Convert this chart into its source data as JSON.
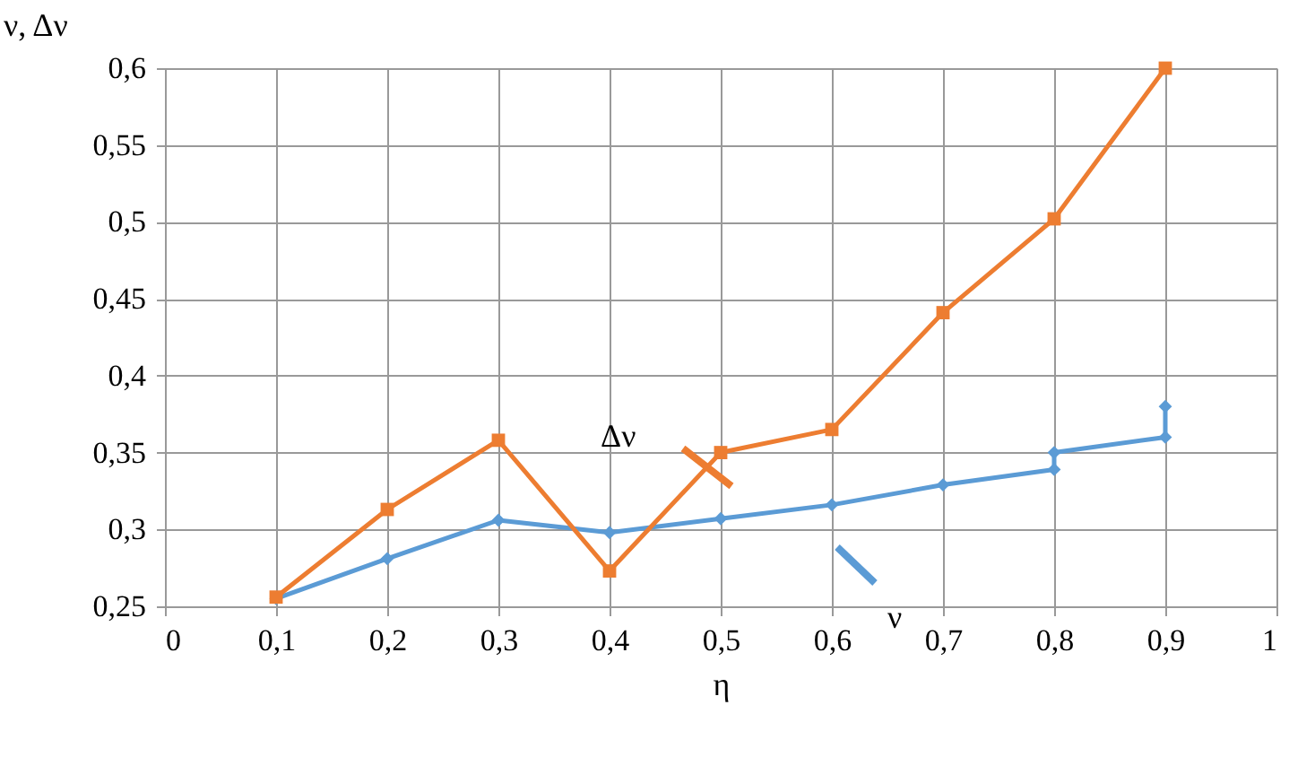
{
  "chart_data": {
    "type": "line",
    "xlabel": "η",
    "ylabel": "ν, Δν",
    "x": [
      0.1,
      0.2,
      0.3,
      0.4,
      0.5,
      0.6,
      0.7,
      0.8,
      0.9
    ],
    "series": [
      {
        "color": "#5b9bd5",
        "marker": "diamond",
        "x": [
          0.1,
          0.2,
          0.3,
          0.4,
          0.5,
          0.6,
          0.7,
          0.8,
          0.8,
          0.9,
          0.9
        ],
        "values": [
          0.255,
          0.281,
          0.306,
          0.298,
          0.307,
          0.316,
          0.329,
          0.339,
          0.35,
          0.36,
          0.38
        ]
      },
      {
        "color": "#ed7d31",
        "marker": "square",
        "values": [
          0.256,
          0.313,
          0.358,
          0.273,
          0.35,
          0.365,
          0.441,
          0.502,
          0.6
        ]
      }
    ],
    "annotations": [
      "ν",
      "Δν"
    ],
    "xlim": [
      0,
      1
    ],
    "ylim": [
      0.25,
      0.6
    ],
    "xticks": [
      0,
      {
        "value": 0.1,
        "label": "0,1"
      },
      {
        "value": 0.2,
        "label": "0,2"
      },
      {
        "value": 0.3,
        "label": "0,3"
      },
      {
        "value": 0.4,
        "label": "0,4"
      },
      {
        "value": 0.5,
        "label": "0,5"
      },
      {
        "value": 0.6,
        "label": "0,6"
      },
      {
        "value": 0.7,
        "label": "0,7"
      },
      {
        "value": 0.8,
        "label": "0,8"
      },
      {
        "value": 0.9,
        "label": "0,9"
      },
      1
    ],
    "yticks": [
      {
        "value": 0.25,
        "label": "0,25"
      },
      {
        "value": 0.3,
        "label": "0,3"
      },
      {
        "value": 0.35,
        "label": "0,35"
      },
      {
        "value": 0.4,
        "label": "0,4"
      },
      {
        "value": 0.45,
        "label": "0,45"
      },
      {
        "value": 0.5,
        "label": "0,5"
      },
      {
        "value": 0.55,
        "label": "0,55"
      },
      {
        "value": 0.6,
        "label": "0,6"
      }
    ],
    "grid": true
  }
}
